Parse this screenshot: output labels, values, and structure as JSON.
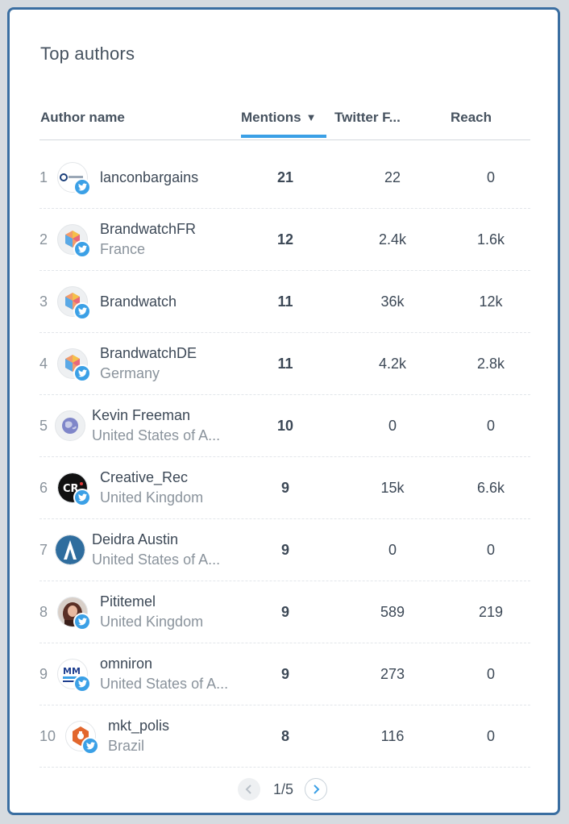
{
  "widget": {
    "title": "Top authors"
  },
  "columns": {
    "author": "Author name",
    "mentions": "Mentions",
    "sort_indicator": "▼",
    "twitter_followers": "Twitter F...",
    "reach": "Reach"
  },
  "rows": [
    {
      "rank": "1",
      "name": "lanconbargains",
      "location": "",
      "mentions": "21",
      "twitter_followers": "22",
      "reach": "0",
      "avatar": "lancon-logo-icon",
      "twitter": true
    },
    {
      "rank": "2",
      "name": "BrandwatchFR",
      "location": "France",
      "mentions": "12",
      "twitter_followers": "2.4k",
      "reach": "1.6k",
      "avatar": "brandwatch-logo-icon",
      "twitter": true
    },
    {
      "rank": "3",
      "name": "Brandwatch",
      "location": "",
      "mentions": "11",
      "twitter_followers": "36k",
      "reach": "12k",
      "avatar": "brandwatch-logo-icon",
      "twitter": true
    },
    {
      "rank": "4",
      "name": "BrandwatchDE",
      "location": "Germany",
      "mentions": "11",
      "twitter_followers": "4.2k",
      "reach": "2.8k",
      "avatar": "brandwatch-logo-icon",
      "twitter": true
    },
    {
      "rank": "5",
      "name": "Kevin Freeman",
      "location": "United States of A...",
      "mentions": "10",
      "twitter_followers": "0",
      "reach": "0",
      "avatar": "globe-avatar-icon",
      "twitter": false
    },
    {
      "rank": "6",
      "name": "Creative_Rec",
      "location": "United Kingdom",
      "mentions": "9",
      "twitter_followers": "15k",
      "reach": "6.6k",
      "avatar": "cr-logo-icon",
      "avatar_text": "CR",
      "twitter": true
    },
    {
      "rank": "7",
      "name": "Deidra Austin",
      "location": "United States of A...",
      "mentions": "9",
      "twitter_followers": "0",
      "reach": "0",
      "avatar": "blue-logo-icon",
      "twitter": false
    },
    {
      "rank": "8",
      "name": "Pititemel",
      "location": "United Kingdom",
      "mentions": "9",
      "twitter_followers": "589",
      "reach": "219",
      "avatar": "person-photo-icon",
      "twitter": true
    },
    {
      "rank": "9",
      "name": "omniron",
      "location": "United States of A...",
      "mentions": "9",
      "twitter_followers": "273",
      "reach": "0",
      "avatar": "mm-logo-icon",
      "avatar_text": "MM",
      "twitter": true
    },
    {
      "rank": "10",
      "name": "mkt_polis",
      "location": "Brazil",
      "mentions": "8",
      "twitter_followers": "116",
      "reach": "0",
      "avatar": "hexagon-logo-icon",
      "twitter": true
    }
  ],
  "pagination": {
    "label": "1/5"
  },
  "colors": {
    "accent": "#3ba0e6",
    "border": "#3a6ea1",
    "text": "#3c4856",
    "muted": "#8a939c"
  }
}
